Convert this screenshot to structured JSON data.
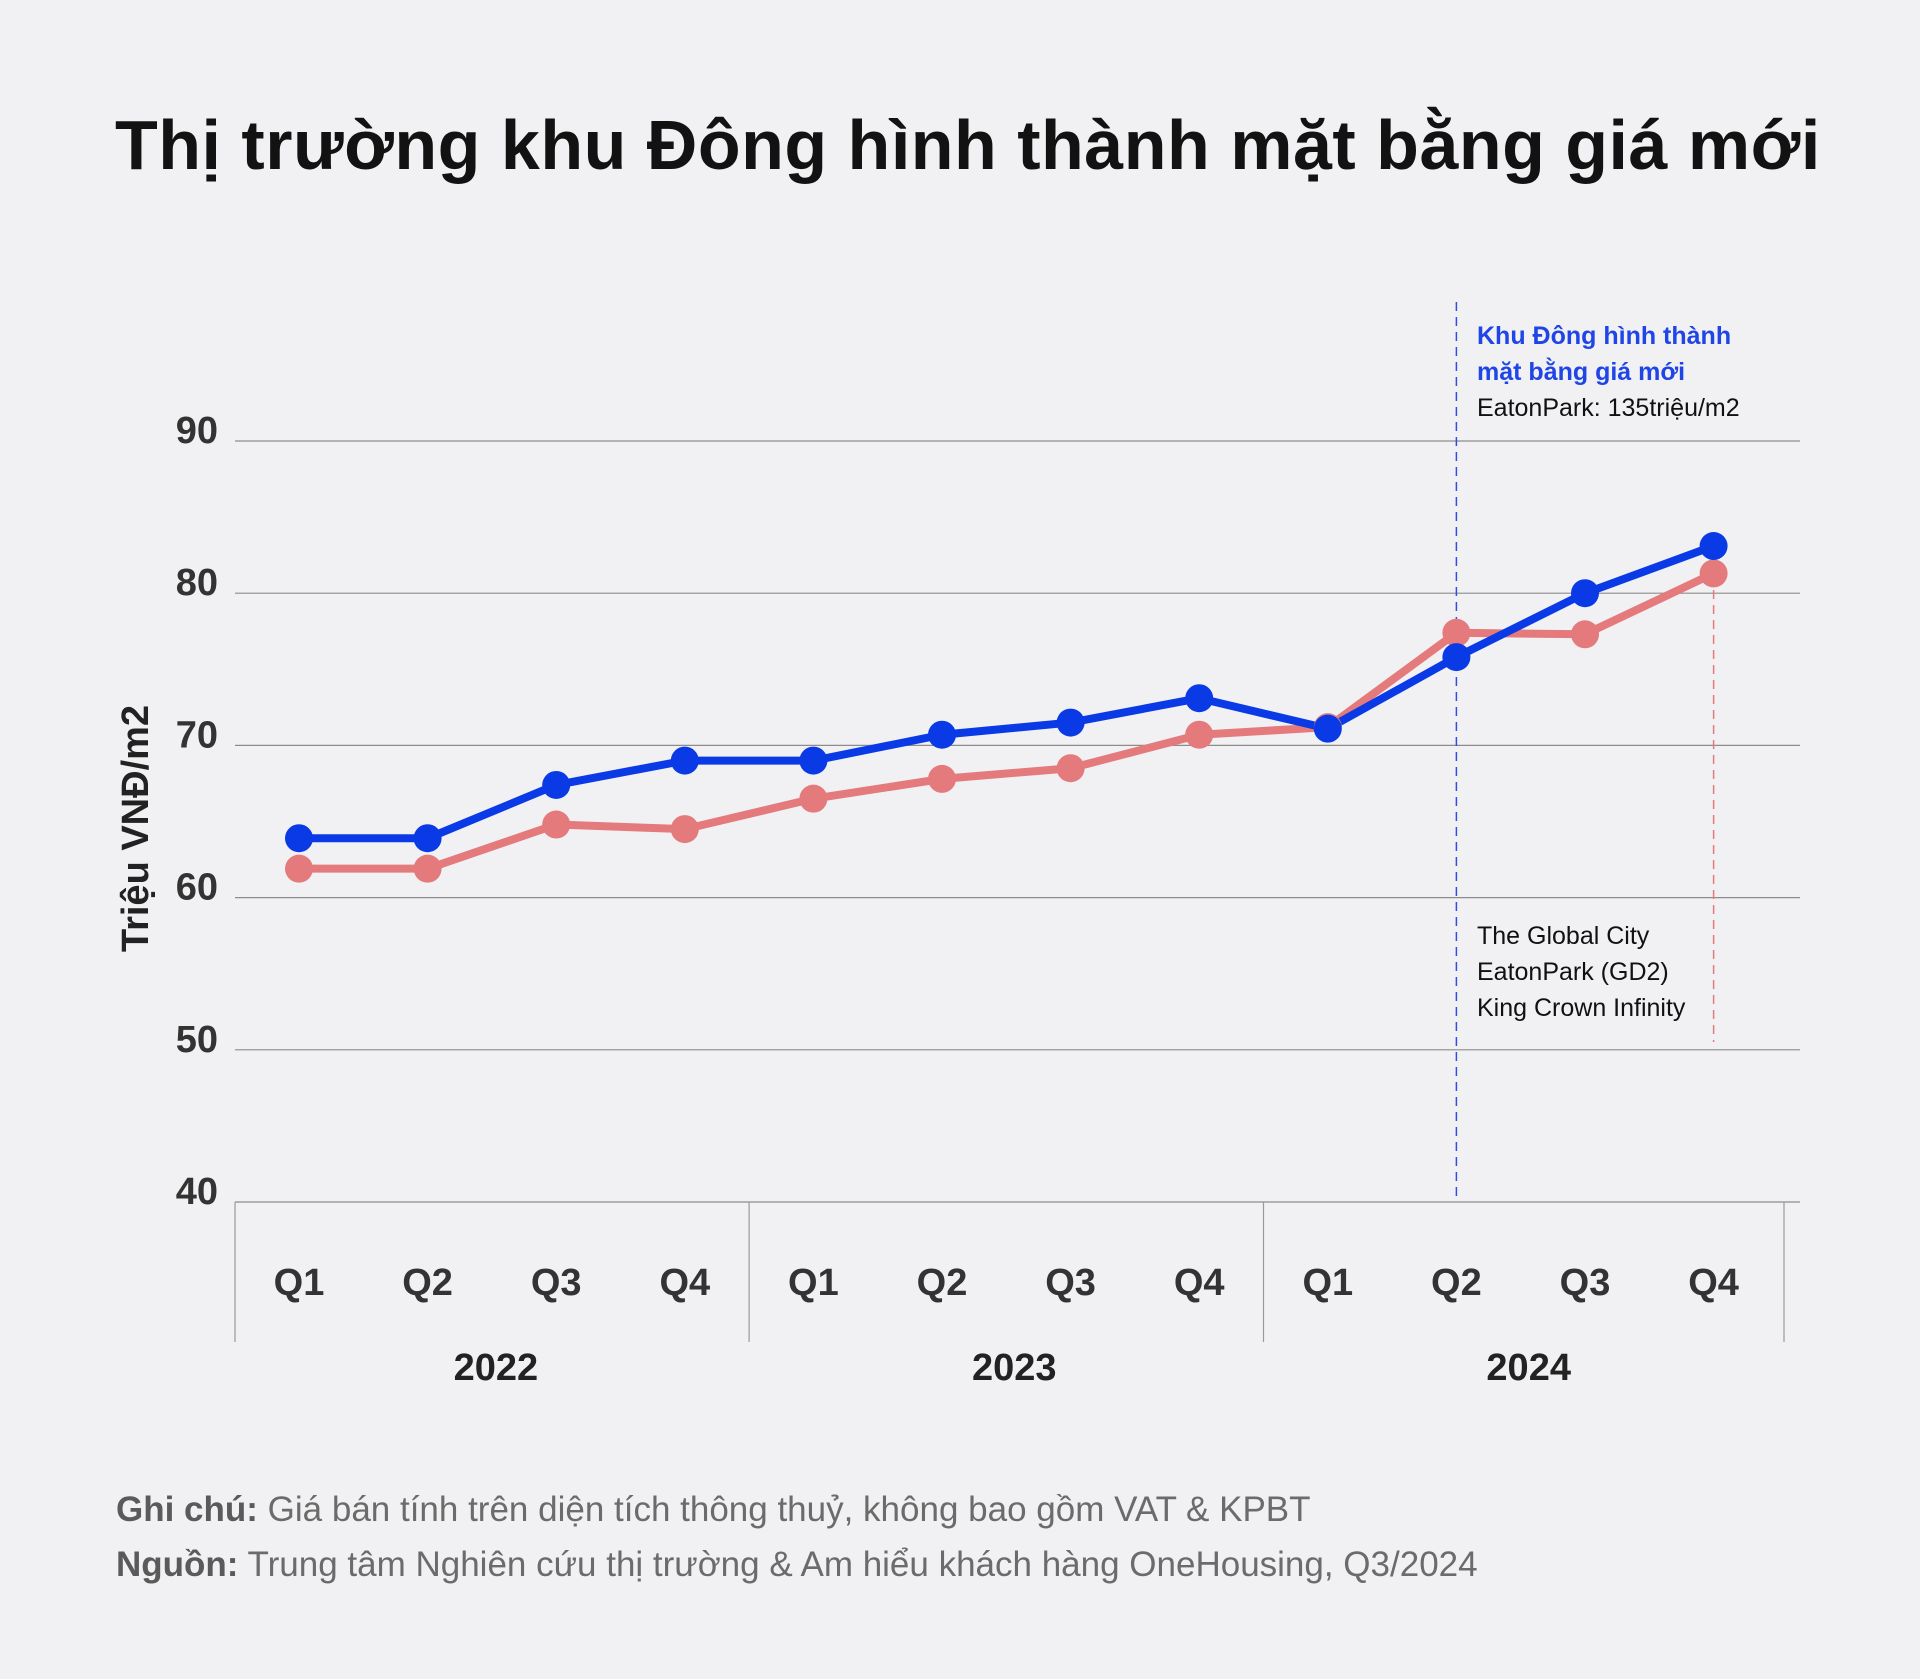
{
  "title": "Thị trường khu Đông hình thành mặt bằng giá mới",
  "chart_data": {
    "type": "line",
    "ylabel": "Triệu VNĐ/m2",
    "ylim": [
      40,
      90
    ],
    "yticks": [
      40,
      50,
      60,
      70,
      80,
      90
    ],
    "grid": true,
    "categories": [
      "Q1",
      "Q2",
      "Q3",
      "Q4",
      "Q1",
      "Q2",
      "Q3",
      "Q4",
      "Q1",
      "Q2",
      "Q3",
      "Q4"
    ],
    "groups": [
      {
        "label": "2022",
        "span": 4
      },
      {
        "label": "2023",
        "span": 4
      },
      {
        "label": "2024",
        "span": 4
      }
    ],
    "series": [
      {
        "color": "#0a3ae6",
        "values": [
          63.9,
          63.9,
          67.4,
          69.0,
          69.0,
          70.7,
          71.5,
          73.1,
          71.1,
          75.8,
          80.0,
          83.1
        ]
      },
      {
        "color": "#e47a7c",
        "values": [
          61.9,
          61.9,
          64.8,
          64.5,
          66.5,
          67.8,
          68.5,
          70.7,
          71.2,
          77.4,
          77.3,
          81.3
        ]
      }
    ],
    "annotations": {
      "top": {
        "category_index": 9,
        "line_color": "#2d4fe0",
        "highlight_color": "#1f45e6",
        "highlight": [
          "Khu Đông hình thành",
          "mặt bằng giá mới"
        ],
        "detail": [
          "EatonPark: 135triệu/m2"
        ]
      },
      "bottom": {
        "category_index": 11,
        "line_color": "#e47a7c",
        "lines": [
          "The Global City",
          "EatonPark (GD2)",
          "King Crown Infinity"
        ]
      }
    }
  },
  "notes": {
    "note_label": "Ghi chú:",
    "note_text": " Giá bán tính trên diện tích thông thuỷ, không bao gồm VAT & KPBT",
    "source_label": "Nguồn:",
    "source_text": " Trung tâm Nghiên cứu thị trường & Am hiểu khách hàng OneHousing, Q3/2024"
  }
}
